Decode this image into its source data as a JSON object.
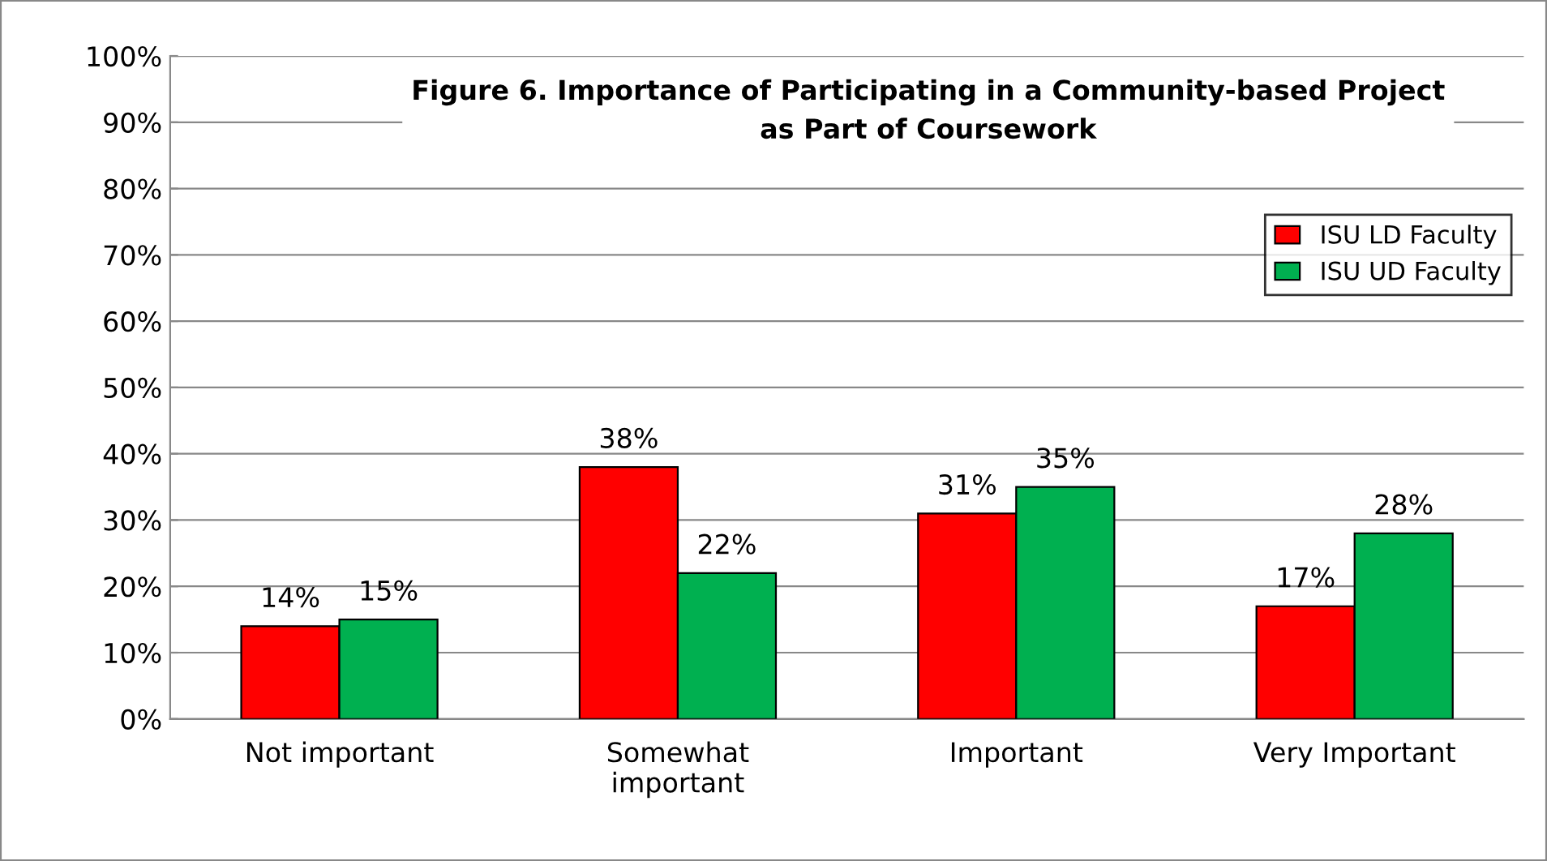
{
  "chart_data": {
    "type": "bar",
    "title": "Figure 6. Importance of Participating in a Community-based Project\nas Part of Coursework",
    "categories": [
      "Not important",
      "Somewhat\nimportant",
      "Important",
      "Very Important"
    ],
    "series": [
      {
        "name": "ISU LD Faculty",
        "color": "#ff0000",
        "values": [
          14,
          38,
          31,
          17
        ],
        "value_labels": [
          "14%",
          "38%",
          "31%",
          "17%"
        ]
      },
      {
        "name": "ISU UD Faculty",
        "color": "#00b050",
        "values": [
          15,
          22,
          35,
          28
        ],
        "value_labels": [
          "15%",
          "22%",
          "35%",
          "28%"
        ]
      }
    ],
    "ylim": [
      0,
      100
    ],
    "yticks": [
      {
        "value": 0,
        "label": "0%"
      },
      {
        "value": 10,
        "label": "10%"
      },
      {
        "value": 20,
        "label": "20%"
      },
      {
        "value": 30,
        "label": "30%"
      },
      {
        "value": 40,
        "label": "40%"
      },
      {
        "value": 50,
        "label": "50%"
      },
      {
        "value": 60,
        "label": "60%"
      },
      {
        "value": 70,
        "label": "70%"
      },
      {
        "value": 80,
        "label": "80%"
      },
      {
        "value": 90,
        "label": "90%"
      },
      {
        "value": 100,
        "label": "100%"
      }
    ],
    "grid": "y",
    "legend": "right"
  }
}
